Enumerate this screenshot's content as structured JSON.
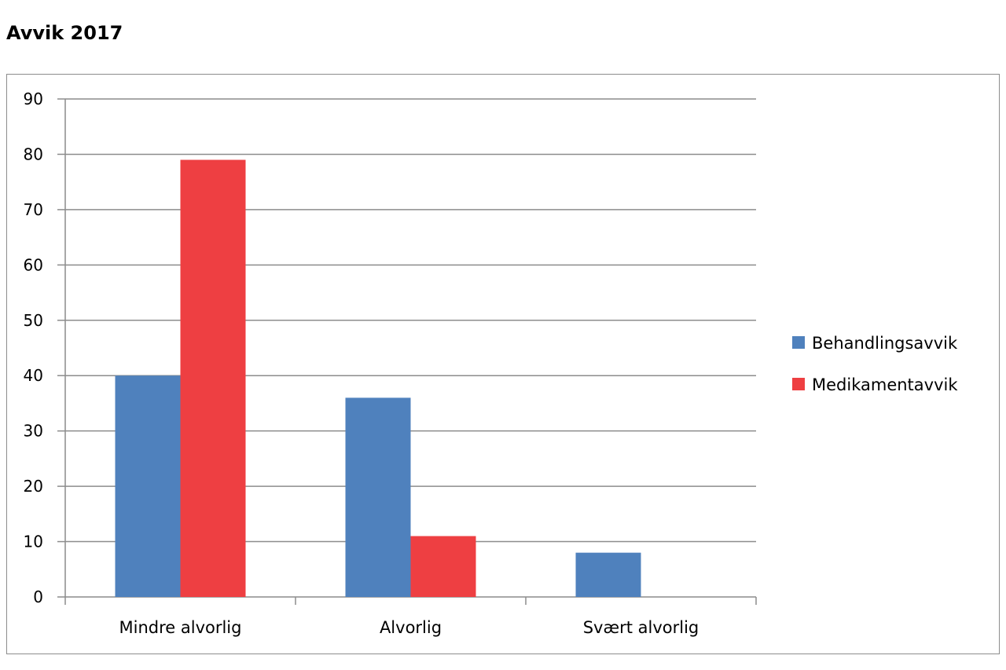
{
  "title": "Avvik 2017",
  "chart_data": {
    "type": "bar",
    "title": "Avvik 2017",
    "categories": [
      "Mindre alvorlig",
      "Alvorlig",
      "Svært alvorlig"
    ],
    "series": [
      {
        "name": "Behandlingsavvik",
        "values": [
          40,
          36,
          8
        ],
        "color": "#4f81bd"
      },
      {
        "name": "Medikamentavvik",
        "values": [
          79,
          11,
          0
        ],
        "color": "#ee3f42"
      }
    ],
    "ylim": [
      0,
      90
    ],
    "yticks": [
      "0",
      "10",
      "20",
      "30",
      "40",
      "50",
      "60",
      "70",
      "80",
      "90"
    ],
    "grid": true,
    "legend_position": "right",
    "xlabel": "",
    "ylabel": ""
  }
}
